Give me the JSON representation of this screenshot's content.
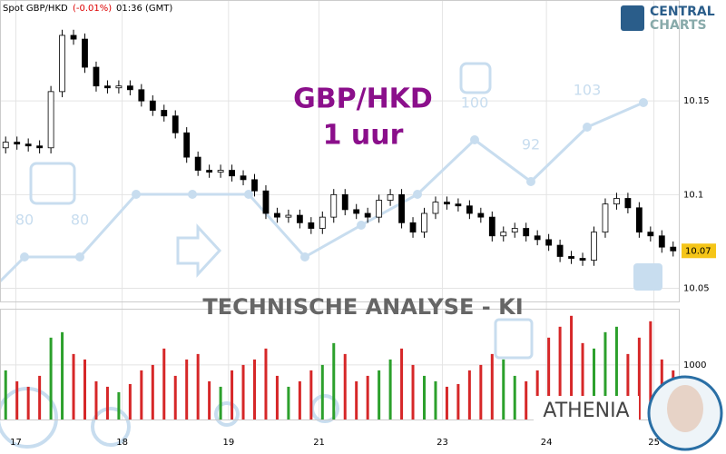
{
  "chart_data": {
    "type": "candlestick",
    "header": {
      "symbol": "Spot GBP/HKD",
      "change": "(-0.01%)",
      "time": "01:36 (GMT)"
    },
    "logo": {
      "line1": "CENTRAL",
      "line2": "CHARTS"
    },
    "title": "GBP/HKD",
    "subtitle": "1 uur",
    "banner": "TECHNISCHE ANALYSE - KI",
    "assistant": "ATHENIA",
    "background_scores": [
      80,
      80,
      100,
      92,
      103
    ],
    "xlim": [
      0,
      60
    ],
    "xticks": [
      {
        "value": 1.4,
        "label": "17"
      },
      {
        "value": 10.8,
        "label": "18"
      },
      {
        "value": 20.2,
        "label": "19"
      },
      {
        "value": 28.2,
        "label": "21"
      },
      {
        "value": 39.1,
        "label": "23"
      },
      {
        "value": 48.3,
        "label": "24"
      },
      {
        "value": 57.8,
        "label": "25"
      }
    ],
    "ylim": [
      10.043,
      10.2
    ],
    "yticks": [
      10.05,
      10.1,
      10.15
    ],
    "last_price": 10.07,
    "open": [
      10.125,
      10.128,
      10.127,
      10.126,
      10.125,
      10.155,
      10.185,
      10.183,
      10.168,
      10.158,
      10.157,
      10.158,
      10.156,
      10.15,
      10.145,
      10.142,
      10.133,
      10.12,
      10.113,
      10.112,
      10.113,
      10.11,
      10.108,
      10.102,
      10.09,
      10.088,
      10.089,
      10.085,
      10.082,
      10.088,
      10.1,
      10.092,
      10.09,
      10.088,
      10.097,
      10.1,
      10.085,
      10.08,
      10.09,
      10.096,
      10.095,
      10.094,
      10.09,
      10.088,
      10.078,
      10.08,
      10.082,
      10.078,
      10.076,
      10.073,
      10.067,
      10.066,
      10.065,
      10.08,
      10.095,
      10.098,
      10.093,
      10.08,
      10.078,
      10.072
    ],
    "high": [
      10.131,
      10.131,
      10.13,
      10.129,
      10.158,
      10.188,
      10.188,
      10.186,
      10.171,
      10.161,
      10.161,
      10.161,
      10.159,
      10.153,
      10.148,
      10.145,
      10.136,
      10.123,
      10.116,
      10.116,
      10.116,
      10.113,
      10.111,
      10.105,
      10.093,
      10.092,
      10.092,
      10.088,
      10.091,
      10.103,
      10.103,
      10.095,
      10.093,
      10.1,
      10.103,
      10.103,
      10.088,
      10.093,
      10.099,
      10.099,
      10.098,
      10.097,
      10.093,
      10.091,
      10.083,
      10.085,
      10.085,
      10.081,
      10.079,
      10.076,
      10.07,
      10.069,
      10.083,
      10.098,
      10.101,
      10.101,
      10.096,
      10.083,
      10.081,
      10.075
    ],
    "low": [
      10.122,
      10.124,
      10.123,
      10.122,
      10.122,
      10.152,
      10.18,
      10.165,
      10.155,
      10.154,
      10.154,
      10.153,
      10.147,
      10.142,
      10.139,
      10.13,
      10.117,
      10.11,
      10.109,
      10.109,
      10.107,
      10.105,
      10.099,
      10.087,
      10.085,
      10.085,
      10.082,
      10.079,
      10.079,
      10.085,
      10.089,
      10.087,
      10.085,
      10.085,
      10.094,
      10.082,
      10.077,
      10.077,
      10.087,
      10.092,
      10.091,
      10.087,
      10.085,
      10.075,
      10.075,
      10.077,
      10.075,
      10.073,
      10.07,
      10.064,
      10.063,
      10.062,
      10.062,
      10.077,
      10.092,
      10.09,
      10.077,
      10.075,
      10.069,
      10.067
    ],
    "close": [
      10.128,
      10.127,
      10.126,
      10.125,
      10.155,
      10.185,
      10.183,
      10.168,
      10.158,
      10.157,
      10.158,
      10.156,
      10.15,
      10.145,
      10.142,
      10.133,
      10.12,
      10.113,
      10.112,
      10.113,
      10.11,
      10.108,
      10.102,
      10.09,
      10.088,
      10.089,
      10.085,
      10.082,
      10.088,
      10.1,
      10.092,
      10.09,
      10.088,
      10.097,
      10.1,
      10.085,
      10.08,
      10.09,
      10.096,
      10.095,
      10.094,
      10.09,
      10.088,
      10.078,
      10.08,
      10.082,
      10.078,
      10.076,
      10.073,
      10.067,
      10.066,
      10.065,
      10.08,
      10.095,
      10.098,
      10.093,
      10.08,
      10.078,
      10.072,
      10.07
    ],
    "volume": [
      900,
      700,
      600,
      800,
      1500,
      1600,
      1200,
      1100,
      700,
      600,
      500,
      650,
      900,
      1000,
      1300,
      800,
      1100,
      1200,
      700,
      600,
      900,
      1000,
      1100,
      1300,
      800,
      600,
      700,
      900,
      1000,
      1400,
      1200,
      700,
      800,
      900,
      1100,
      1300,
      1000,
      800,
      700,
      600,
      650,
      900,
      1000,
      1200,
      1100,
      800,
      700,
      900,
      1500,
      1700,
      1900,
      1400,
      1300,
      1600,
      1700,
      1200,
      1500,
      1800,
      1100,
      900
    ],
    "vol_ylim": [
      0,
      2030
    ],
    "vol_yticks": [
      1000
    ]
  }
}
